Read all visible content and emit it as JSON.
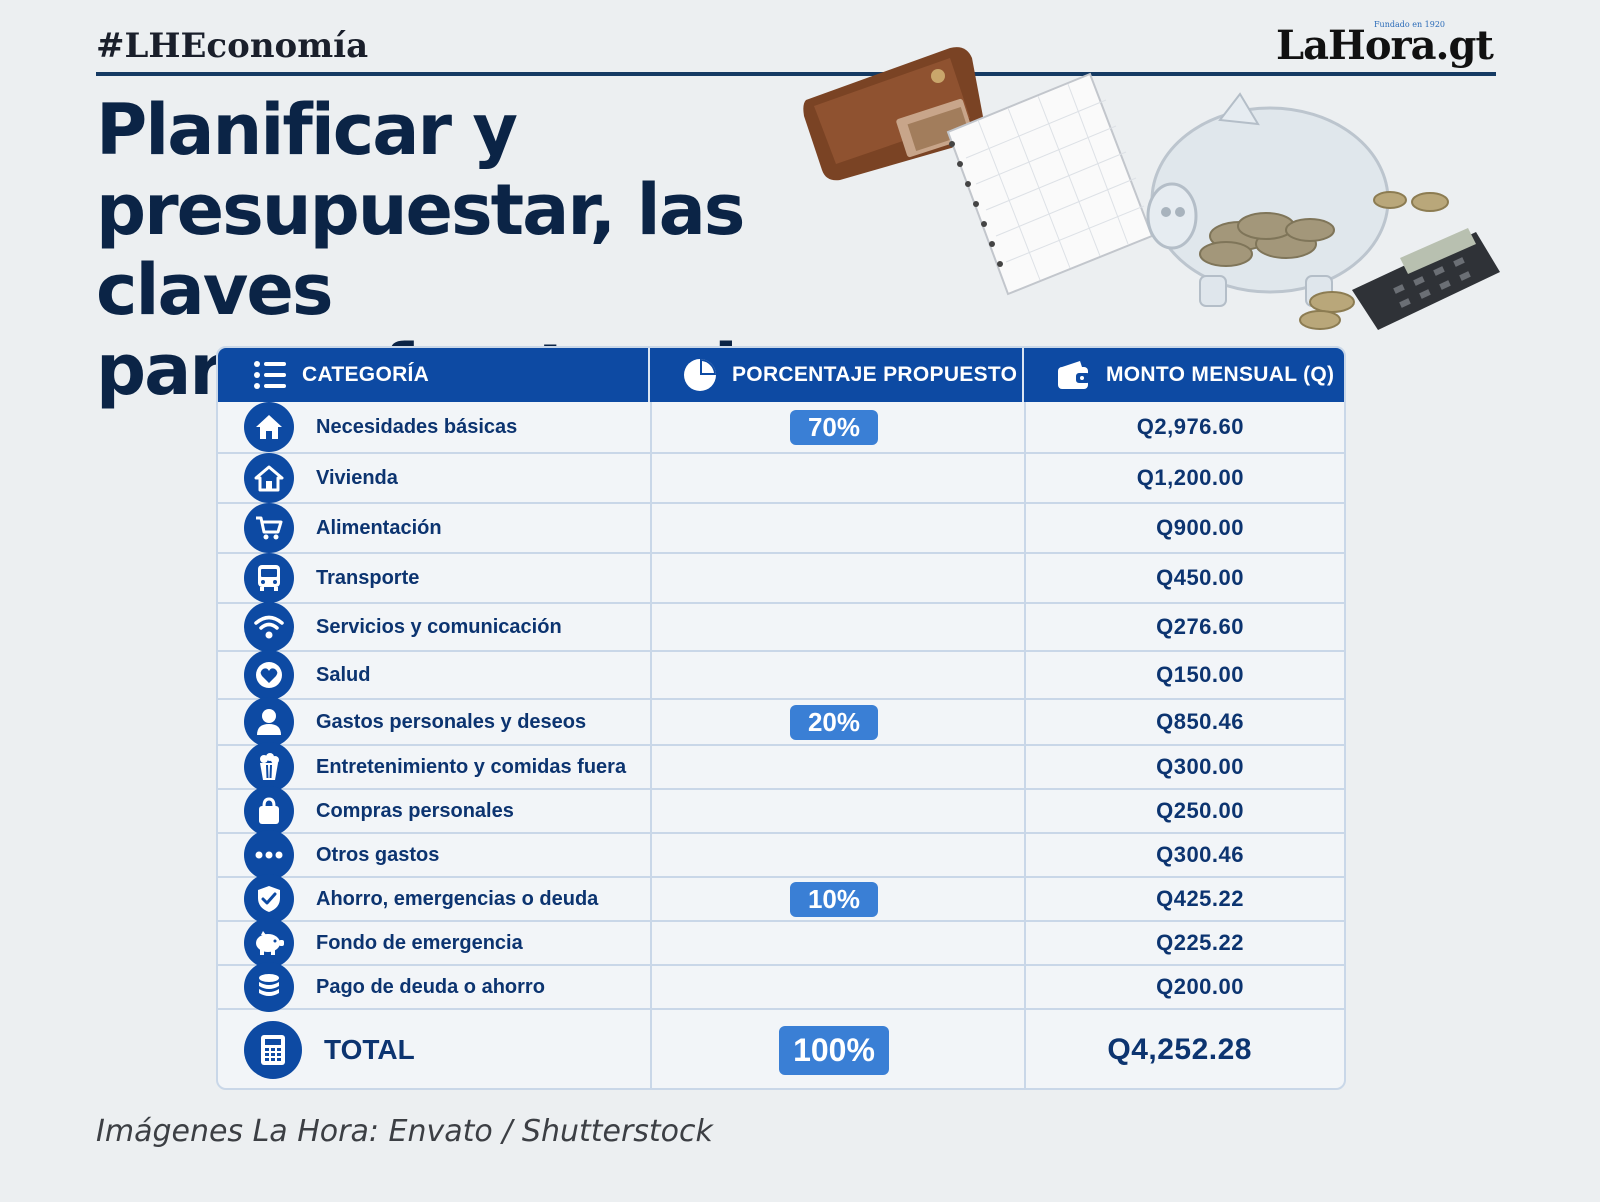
{
  "header": {
    "hashtag": "#LHEconomía",
    "logo": {
      "part1": "LaH",
      "o": "o",
      "part2": "ra.gt",
      "tagline": "Fundado en 1920"
    },
    "headline": [
      "Planificar y",
      "presupuestar, las claves",
      "para enfrentar alzas"
    ]
  },
  "table": {
    "headers": {
      "category": "CATEGORÍA",
      "percent": "PORCENTAJE PROPUESTO",
      "amount": "MONTO MENSUAL (Q)"
    },
    "rows": [
      {
        "icon": "house-icon",
        "label": "Necesidades básicas",
        "percent": "70%",
        "amount": "Q2,976.60"
      },
      {
        "icon": "home-icon",
        "label": "Vivienda",
        "percent": "",
        "amount": "Q1,200.00"
      },
      {
        "icon": "cart-icon",
        "label": "Alimentación",
        "percent": "",
        "amount": "Q900.00"
      },
      {
        "icon": "bus-icon",
        "label": "Transporte",
        "percent": "",
        "amount": "Q450.00"
      },
      {
        "icon": "wifi-icon",
        "label": "Servicios y comunicación",
        "percent": "",
        "amount": "Q276.60"
      },
      {
        "icon": "heart-icon",
        "label": "Salud",
        "percent": "",
        "amount": "Q150.00"
      },
      {
        "icon": "person-icon",
        "label": "Gastos personales y deseos",
        "percent": "20%",
        "amount": "Q850.46"
      },
      {
        "icon": "popcorn-icon",
        "label": "Entretenimiento y comidas fuera",
        "percent": "",
        "amount": "Q300.00"
      },
      {
        "icon": "shopping-bag-icon",
        "label": "Compras personales",
        "percent": "",
        "amount": "Q250.00"
      },
      {
        "icon": "ellipsis-icon",
        "label": "Otros gastos",
        "percent": "",
        "amount": "Q300.46"
      },
      {
        "icon": "shield-check-icon",
        "label": "Ahorro, emergencias o deuda",
        "percent": "10%",
        "amount": "Q425.22"
      },
      {
        "icon": "piggy-bank-icon",
        "label": "Fondo de emergencia",
        "percent": "",
        "amount": "Q225.22"
      },
      {
        "icon": "coins-icon",
        "label": "Pago de deuda o ahorro",
        "percent": "",
        "amount": "Q200.00"
      }
    ],
    "total": {
      "icon": "calculator-icon",
      "label": "TOTAL",
      "percent": "100%",
      "amount": "Q4,252.28"
    }
  },
  "credit": "Imágenes La Hora: Envato / Shutterstock",
  "colors": {
    "header_blue": "#0d4aa3",
    "badge_blue": "#3a7fd5",
    "text_navy": "#0c3470",
    "background": "#eceff1"
  }
}
